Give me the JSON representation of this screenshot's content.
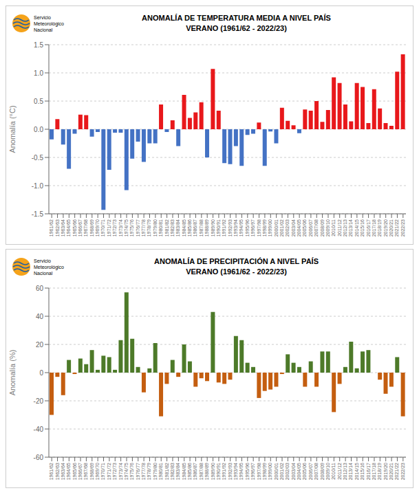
{
  "chart_data": [
    {
      "type": "bar",
      "title": "ANOMALÍA DE TEMPERATURA MEDIA A NIVEL PAÍS",
      "subtitle": "VERANO (1961/62 - 2022/23)",
      "annotations": [
        "Servicio",
        "Meteorológico",
        "Nacional"
      ],
      "y_label": "Anomalía (°C)",
      "categories": [
        "1961/62",
        "1962/63",
        "1963/64",
        "1964/65",
        "1965/66",
        "1966/67",
        "1967/68",
        "1968/69",
        "1969/70",
        "1970/71",
        "1971/72",
        "1972/73",
        "1973/74",
        "1974/75",
        "1975/76",
        "1976/77",
        "1977/78",
        "1978/79",
        "1979/80",
        "1980/81",
        "1981/82",
        "1982/83",
        "1983/84",
        "1984/85",
        "1985/86",
        "1986/87",
        "1987/88",
        "1988/89",
        "1989/90",
        "1990/91",
        "1991/92",
        "1992/93",
        "1993/94",
        "1994/95",
        "1995/96",
        "1996/97",
        "1997/98",
        "1998/99",
        "1999/00",
        "2000/01",
        "2001/02",
        "2002/03",
        "2003/04",
        "2004/05",
        "2005/06",
        "2006/07",
        "2007/08",
        "2008/09",
        "2009/10",
        "2010/11",
        "2011/12",
        "2012/13",
        "2013/14",
        "2014/15",
        "2015/16",
        "2016/17",
        "2017/18",
        "2018/19",
        "2019/20",
        "2020/21",
        "2021/22",
        "2022/23"
      ],
      "values": [
        -0.18,
        0.18,
        -0.27,
        -0.7,
        -0.08,
        0.26,
        0.25,
        -0.13,
        -0.05,
        -1.43,
        -0.72,
        -0.06,
        -0.06,
        -1.08,
        -0.52,
        -0.22,
        -0.58,
        -0.25,
        -0.25,
        0.44,
        -0.05,
        0.16,
        -0.3,
        0.61,
        0.2,
        0.3,
        0.48,
        -0.5,
        1.07,
        0.33,
        -0.6,
        -0.62,
        -0.3,
        -0.65,
        -0.1,
        -0.08,
        0.12,
        -0.65,
        -0.04,
        -0.25,
        0.38,
        0.15,
        0.07,
        -0.07,
        0.35,
        0.33,
        0.5,
        0.13,
        0.34,
        0.92,
        0.82,
        0.44,
        0.14,
        0.82,
        0.75,
        0.11,
        0.71,
        0.37,
        0.11,
        0.06,
        1.02,
        1.33
      ],
      "colors": [
        "#4472c4",
        "#e8181b",
        "#4472c4",
        "#4472c4",
        "#4472c4",
        "#e8181b",
        "#e8181b",
        "#4472c4",
        "#4472c4",
        "#4472c4",
        "#4472c4",
        "#4472c4",
        "#4472c4",
        "#4472c4",
        "#4472c4",
        "#4472c4",
        "#4472c4",
        "#4472c4",
        "#4472c4",
        "#e8181b",
        "#4472c4",
        "#e8181b",
        "#4472c4",
        "#e8181b",
        "#e8181b",
        "#e8181b",
        "#e8181b",
        "#4472c4",
        "#e8181b",
        "#e8181b",
        "#4472c4",
        "#4472c4",
        "#4472c4",
        "#4472c4",
        "#4472c4",
        "#4472c4",
        "#e8181b",
        "#4472c4",
        "#4472c4",
        "#4472c4",
        "#e8181b",
        "#e8181b",
        "#e8181b",
        "#4472c4",
        "#e8181b",
        "#e8181b",
        "#e8181b",
        "#e8181b",
        "#e8181b",
        "#e8181b",
        "#e8181b",
        "#e8181b",
        "#e8181b",
        "#e8181b",
        "#e8181b",
        "#e8181b",
        "#e8181b",
        "#e8181b",
        "#e8181b",
        "#e8181b",
        "#e8181b",
        "#e8181b"
      ],
      "ylim": [
        -1.5,
        1.5
      ],
      "yticks": [
        -1.5,
        {
          "value": -1.0,
          "label": "-1.0"
        },
        -0.5,
        {
          "value": 0.0,
          "label": "0.0"
        },
        0.5,
        {
          "value": 1.0,
          "label": "1.0"
        },
        1.5
      ],
      "grid": true
    },
    {
      "type": "bar",
      "title": "ANOMALÍA DE PRECIPITACIÓN A NIVEL PAÍS",
      "subtitle": "VERANO (1961/62 - 2022/23)",
      "annotations": [
        "Servicio",
        "Meteorológico",
        "Nacional"
      ],
      "y_label": "Anomalía (%)",
      "categories": [
        "1961/62",
        "1962/63",
        "1963/64",
        "1964/65",
        "1965/66",
        "1966/67",
        "1967/68",
        "1968/69",
        "1969/70",
        "1970/71",
        "1971/72",
        "1972/73",
        "1973/74",
        "1974/75",
        "1975/76",
        "1976/77",
        "1977/78",
        "1978/79",
        "1979/80",
        "1980/81",
        "1981/82",
        "1982/83",
        "1983/84",
        "1984/85",
        "1985/86",
        "1986/87",
        "1987/88",
        "1988/89",
        "1989/90",
        "1990/91",
        "1991/92",
        "1992/93",
        "1993/94",
        "1994/95",
        "1995/96",
        "1996/97",
        "1997/98",
        "1998/99",
        "1999/00",
        "2000/01",
        "2001/02",
        "2002/03",
        "2003/04",
        "2004/05",
        "2005/06",
        "2006/07",
        "2007/08",
        "2008/09",
        "2009/10",
        "2010/11",
        "2011/12",
        "2012/13",
        "2013/14",
        "2014/15",
        "2015/16",
        "2016/17",
        "2017/18",
        "2018/19",
        "2019/20",
        "2020/21",
        "2021/22",
        "2022/23"
      ],
      "values": [
        -30,
        -3,
        -16,
        9,
        -1,
        10,
        6,
        16,
        2,
        12,
        11,
        2,
        23,
        57,
        24,
        4,
        -14,
        3,
        21,
        -31,
        -8,
        9,
        -3,
        20,
        8,
        -10,
        -4,
        -6,
        43,
        -7,
        -8,
        -5,
        26,
        23,
        7,
        4,
        -18,
        -13,
        -12,
        -10,
        -1,
        13,
        7,
        4,
        -10,
        8,
        -10,
        15,
        15,
        -28,
        -8,
        4,
        22,
        3,
        15,
        16,
        0,
        -5,
        -15,
        -10,
        11,
        -31
      ],
      "colors": [
        "#c45e10",
        "#c45e10",
        "#c45e10",
        "#4d7a29",
        "#c45e10",
        "#4d7a29",
        "#4d7a29",
        "#4d7a29",
        "#4d7a29",
        "#4d7a29",
        "#4d7a29",
        "#4d7a29",
        "#4d7a29",
        "#4d7a29",
        "#4d7a29",
        "#4d7a29",
        "#c45e10",
        "#4d7a29",
        "#4d7a29",
        "#c45e10",
        "#c45e10",
        "#4d7a29",
        "#c45e10",
        "#4d7a29",
        "#4d7a29",
        "#c45e10",
        "#c45e10",
        "#c45e10",
        "#4d7a29",
        "#c45e10",
        "#c45e10",
        "#c45e10",
        "#4d7a29",
        "#4d7a29",
        "#4d7a29",
        "#4d7a29",
        "#c45e10",
        "#c45e10",
        "#c45e10",
        "#c45e10",
        "#c45e10",
        "#4d7a29",
        "#4d7a29",
        "#4d7a29",
        "#c45e10",
        "#4d7a29",
        "#c45e10",
        "#4d7a29",
        "#4d7a29",
        "#c45e10",
        "#c45e10",
        "#4d7a29",
        "#4d7a29",
        "#4d7a29",
        "#4d7a29",
        "#4d7a29",
        "#4d7a29",
        "#c45e10",
        "#c45e10",
        "#c45e10",
        "#4d7a29",
        "#c45e10"
      ],
      "ylim": [
        -60,
        60
      ],
      "yticks": [
        -60,
        -40,
        -20,
        0,
        20,
        40,
        60
      ],
      "grid": true
    }
  ]
}
